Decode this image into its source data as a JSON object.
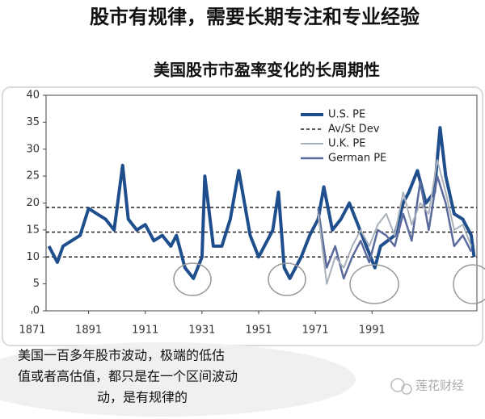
{
  "chart_data": {
    "type": "line",
    "title": "股市有规律，需要长期专注和专业经验",
    "subtitle": "美国股市市盈率变化的长周期性",
    "xlim": [
      1876,
      2028
    ],
    "xticks": [
      1871,
      1891,
      1911,
      1931,
      1951,
      1971,
      1991
    ],
    "ylim": [
      0,
      40
    ],
    "yticks": [
      0,
      5,
      10,
      15,
      20,
      25,
      30,
      35,
      40
    ],
    "legend": "top-right",
    "series": [
      {
        "name": "U.S. PE",
        "color": "#1f4e8c",
        "x": [
          1877,
          1880,
          1882,
          1885,
          1888,
          1891,
          1894,
          1897,
          1900,
          1903,
          1905,
          1908,
          1911,
          1914,
          1917,
          1920,
          1922,
          1925,
          1928,
          1931,
          1932,
          1935,
          1938,
          1941,
          1944,
          1948,
          1951,
          1953,
          1956,
          1958,
          1960,
          1962,
          1966,
          1969,
          1972,
          1974,
          1977,
          1980,
          1983,
          1986,
          1989,
          1992,
          1994,
          1999,
          2002,
          2004,
          2007,
          2010,
          2013,
          2015,
          2017,
          2020,
          2023,
          2026,
          2027
        ],
        "values": [
          12,
          9,
          12,
          13,
          14,
          19,
          18,
          17,
          15,
          27,
          17,
          15,
          16,
          13,
          14,
          12,
          14,
          8,
          6,
          10,
          25,
          12,
          12,
          17,
          26,
          14,
          10,
          12,
          15,
          22,
          8,
          6,
          10,
          14,
          17,
          23,
          15,
          17,
          20,
          16,
          12,
          8,
          12,
          14,
          20,
          22,
          26,
          20,
          22,
          34,
          25,
          18,
          17,
          14,
          10
        ]
      },
      {
        "name": "Av/St Dev",
        "color": "#222222",
        "kind": "hline",
        "values": [
          19.2,
          14.6,
          10.0
        ]
      },
      {
        "name": "U.K. PE",
        "color": "#a9b1ba",
        "x": [
          1972,
          1975,
          1978,
          1981,
          1984,
          1987,
          1990,
          1993,
          1996,
          1999,
          2002,
          2005,
          2008,
          2011,
          2014,
          2017,
          2020,
          2023,
          2026
        ],
        "values": [
          18,
          5,
          10,
          8,
          12,
          15,
          12,
          16,
          18,
          14,
          22,
          16,
          20,
          18,
          28,
          22,
          15,
          16,
          12
        ]
      },
      {
        "name": "German PE",
        "color": "#5a6a9c",
        "x": [
          1972,
          1975,
          1978,
          1981,
          1984,
          1987,
          1990,
          1993,
          1996,
          1999,
          2002,
          2005,
          2008,
          2011,
          2014,
          2017,
          2020,
          2023,
          2026
        ],
        "values": [
          19,
          8,
          12,
          6,
          10,
          13,
          9,
          15,
          14,
          12,
          18,
          13,
          24,
          15,
          25,
          20,
          12,
          14,
          11
        ]
      }
    ]
  },
  "annotation": {
    "lines": [
      "美国一百多年股市波动，极端的低估",
      "值或者高估值，都只是在一个区间波动",
      "动，是有规律的"
    ]
  },
  "watermark": "莲花财经"
}
